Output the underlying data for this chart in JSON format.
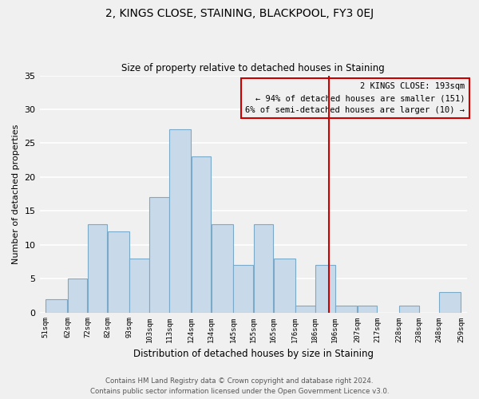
{
  "title": "2, KINGS CLOSE, STAINING, BLACKPOOL, FY3 0EJ",
  "subtitle": "Size of property relative to detached houses in Staining",
  "xlabel": "Distribution of detached houses by size in Staining",
  "ylabel": "Number of detached properties",
  "bin_edges": [
    51,
    62,
    72,
    82,
    93,
    103,
    113,
    124,
    134,
    145,
    155,
    165,
    176,
    186,
    196,
    207,
    217,
    228,
    238,
    248,
    259
  ],
  "bin_labels": [
    "51sqm",
    "62sqm",
    "72sqm",
    "82sqm",
    "93sqm",
    "103sqm",
    "113sqm",
    "124sqm",
    "134sqm",
    "145sqm",
    "155sqm",
    "165sqm",
    "176sqm",
    "186sqm",
    "196sqm",
    "207sqm",
    "217sqm",
    "228sqm",
    "238sqm",
    "248sqm",
    "259sqm"
  ],
  "counts": [
    2,
    5,
    13,
    12,
    8,
    17,
    27,
    23,
    13,
    7,
    13,
    8,
    1,
    7,
    1,
    1,
    0,
    1,
    0,
    3
  ],
  "bar_color": "#c8daea",
  "bar_edge_color": "#7aaac8",
  "property_size": 193,
  "vline_color": "#cc0000",
  "annotation_title": "2 KINGS CLOSE: 193sqm",
  "annotation_line1": "← 94% of detached houses are smaller (151)",
  "annotation_line2": "6% of semi-detached houses are larger (10) →",
  "annotation_box_edge": "#cc0000",
  "ylim": [
    0,
    35
  ],
  "yticks": [
    0,
    5,
    10,
    15,
    20,
    25,
    30,
    35
  ],
  "footer_line1": "Contains HM Land Registry data © Crown copyright and database right 2024.",
  "footer_line2": "Contains public sector information licensed under the Open Government Licence v3.0.",
  "bg_color": "#f0f0f0",
  "grid_color": "#ffffff"
}
